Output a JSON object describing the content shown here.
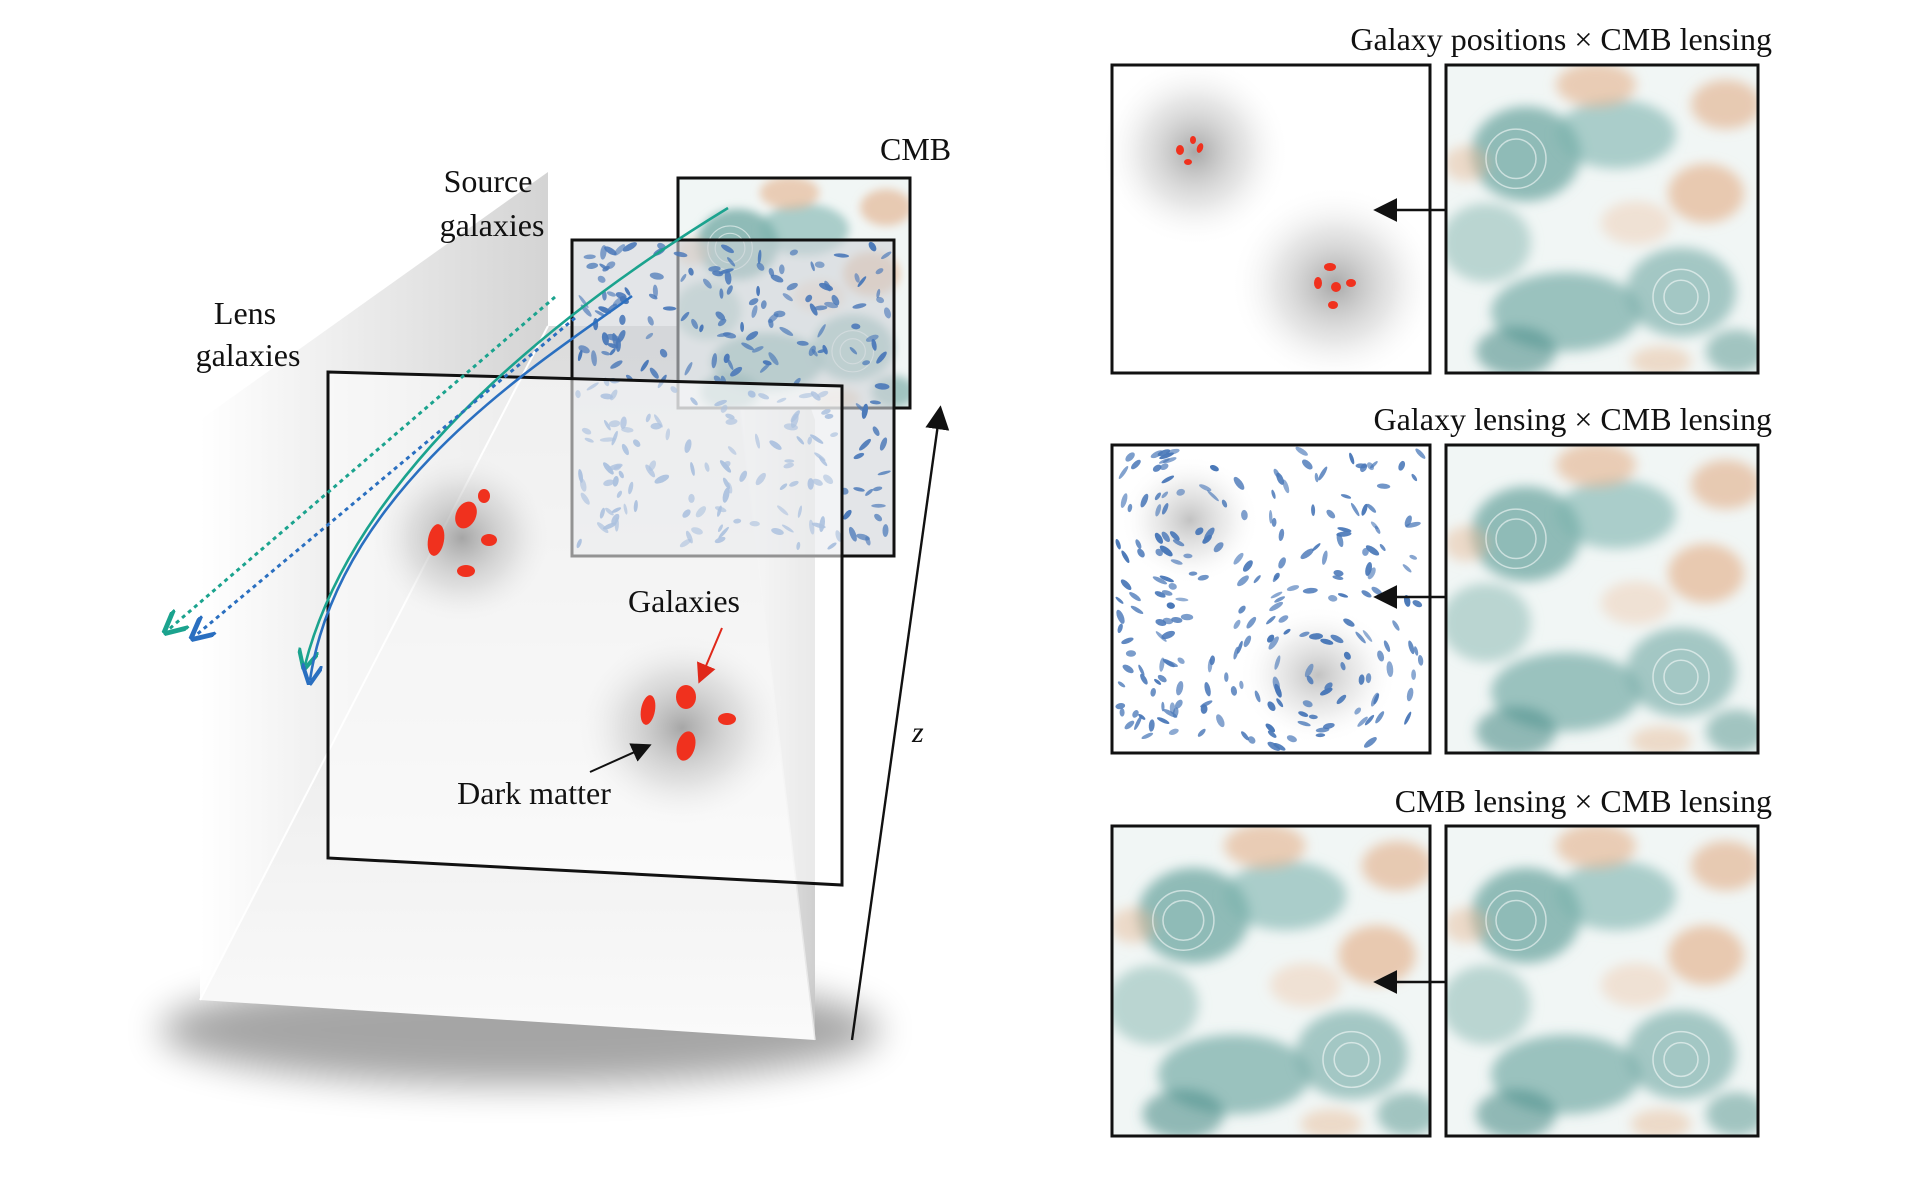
{
  "labels": {
    "cmb": "CMB",
    "source_galaxies": [
      "Source",
      "galaxies"
    ],
    "lens_galaxies": [
      "Lens",
      "galaxies"
    ],
    "galaxies": "Galaxies",
    "dark_matter": "Dark matter",
    "z_axis": "z"
  },
  "panels": [
    {
      "title": "Galaxy positions × CMB lensing",
      "left": "galaxy-positions",
      "right": "cmb-map"
    },
    {
      "title": "Galaxy lensing × CMB lensing",
      "left": "galaxy-shears",
      "right": "cmb-map"
    },
    {
      "title": "CMB lensing × CMB lensing",
      "left": "cmb-map",
      "right": "cmb-map"
    }
  ],
  "colors": {
    "galaxy_red": "#f0311e",
    "galaxy_blue": "#4a78b8",
    "ray_teal": "#1ba38e",
    "ray_blue": "#2a6fc0",
    "cmb_teal": "#5f9e9a",
    "cmb_orange": "#e0a57c"
  }
}
